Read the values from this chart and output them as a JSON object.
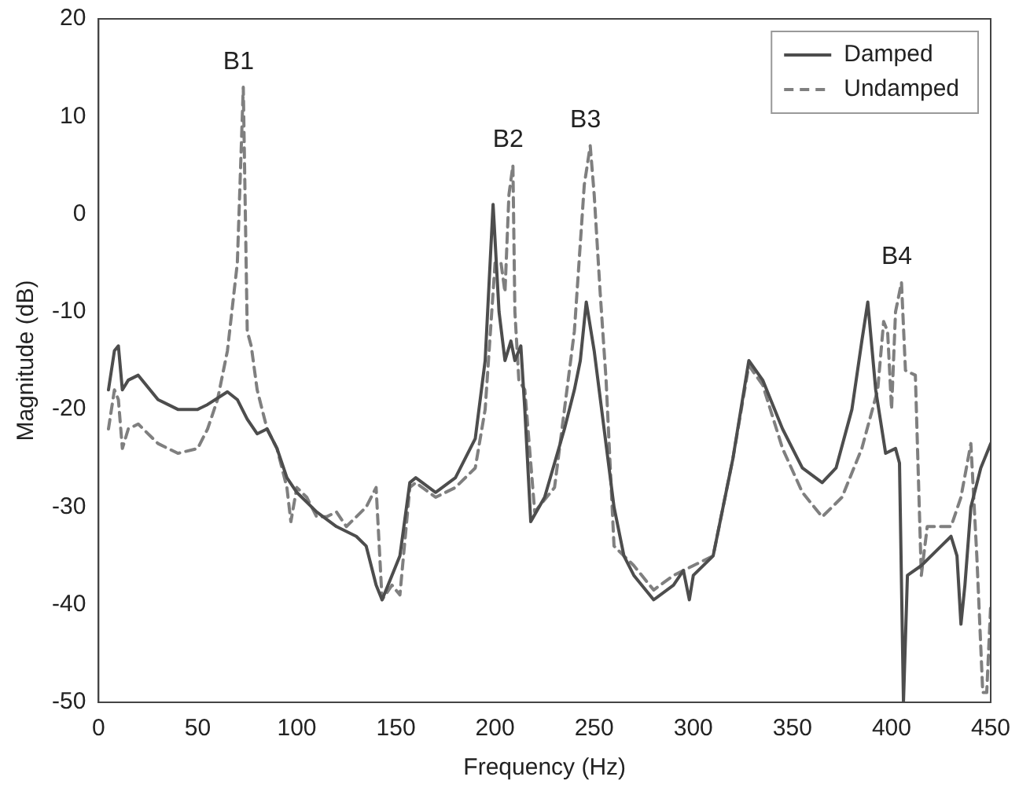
{
  "chart_data": {
    "type": "line",
    "xlabel": "Frequency (Hz)",
    "ylabel": "Magnitude (dB)",
    "xlim": [
      0,
      450
    ],
    "xticks": [
      0,
      50,
      100,
      150,
      200,
      250,
      300,
      350,
      400,
      450
    ],
    "ylim": [
      -50,
      20
    ],
    "yticks": [
      -50,
      -40,
      -30,
      -20,
      -10,
      0,
      10,
      20
    ],
    "grid": false,
    "legend": "top right",
    "marker": "none",
    "annotations": [
      {
        "text": "B1",
        "x": 73,
        "y": 13
      },
      {
        "text": "B2",
        "x": 209,
        "y": 5
      },
      {
        "text": "B3",
        "x": 248,
        "y": 7
      },
      {
        "text": "B4",
        "x": 405,
        "y": -7
      }
    ],
    "series": [
      {
        "name": "Damped",
        "color": "#4d4d4d",
        "line_style": "solid",
        "x": [
          5,
          8,
          10,
          12,
          15,
          20,
          30,
          40,
          50,
          55,
          65,
          70,
          75,
          80,
          85,
          90,
          95,
          100,
          110,
          120,
          130,
          135,
          140,
          143,
          148,
          152,
          157,
          160,
          170,
          180,
          190,
          195,
          199,
          202,
          205,
          208,
          210,
          213,
          215,
          218,
          225,
          235,
          240,
          243,
          246,
          250,
          255,
          260,
          265,
          270,
          280,
          290,
          295,
          298,
          300,
          310,
          320,
          328,
          335,
          345,
          355,
          365,
          372,
          380,
          385,
          388,
          392,
          397,
          402,
          404,
          406,
          408,
          415,
          425,
          430,
          433,
          435,
          437,
          440,
          445,
          450
        ],
        "values": [
          -18,
          -14,
          -13.5,
          -18,
          -17,
          -16.5,
          -19,
          -20,
          -20,
          -19.5,
          -18.2,
          -19,
          -21,
          -22.5,
          -22,
          -24,
          -27,
          -28.5,
          -30.5,
          -32,
          -33,
          -34,
          -38,
          -39.5,
          -37,
          -35,
          -27.5,
          -27,
          -28.5,
          -27,
          -23,
          -15,
          1,
          -10,
          -15,
          -13,
          -15,
          -13.5,
          -20,
          -31.5,
          -29,
          -22,
          -18,
          -15,
          -9,
          -14,
          -22,
          -30,
          -35,
          -37,
          -39.5,
          -38,
          -36.5,
          -39.5,
          -37,
          -35,
          -25,
          -15,
          -17,
          -22,
          -26,
          -27.5,
          -26,
          -20,
          -13,
          -9,
          -18,
          -24.5,
          -24,
          -25.5,
          -50,
          -37,
          -36,
          -34,
          -33,
          -35,
          -42,
          -38,
          -30,
          -26,
          -23.5
        ]
      },
      {
        "name": "Undamped",
        "color": "#7f7f7f",
        "line_style": "dashed",
        "x": [
          5,
          8,
          10,
          12,
          15,
          20,
          30,
          40,
          50,
          55,
          60,
          65,
          70,
          73,
          75,
          77,
          80,
          85,
          90,
          95,
          97,
          100,
          105,
          110,
          115,
          120,
          125,
          130,
          135,
          140,
          143,
          148,
          152,
          157,
          160,
          170,
          180,
          190,
          195,
          200,
          203,
          205,
          207,
          209,
          210,
          212,
          215,
          220,
          230,
          240,
          245,
          248,
          250,
          253,
          256,
          260,
          265,
          270,
          280,
          290,
          300,
          310,
          320,
          328,
          335,
          345,
          355,
          365,
          375,
          385,
          393,
          396,
          398,
          400,
          402,
          405,
          407,
          412,
          415,
          418,
          425,
          430,
          435,
          440,
          443,
          446,
          448,
          450
        ],
        "values": [
          -22,
          -18,
          -19,
          -24,
          -22,
          -21.5,
          -23.5,
          -24.5,
          -24,
          -22,
          -19,
          -14,
          -5,
          13,
          -12,
          -13.5,
          -18,
          -22,
          -24,
          -28,
          -31.5,
          -28,
          -29,
          -31,
          -31,
          -30.5,
          -32,
          -31,
          -30,
          -28,
          -39.5,
          -38,
          -39,
          -28,
          -27.5,
          -29,
          -28,
          -26,
          -20,
          -5,
          -5,
          -8,
          2,
          5,
          -10,
          -17,
          -18,
          -30.5,
          -28,
          -12,
          3,
          7,
          2,
          -8,
          -17,
          -34,
          -35,
          -36,
          -38.5,
          -37,
          -36,
          -35,
          -25,
          -15.5,
          -17.5,
          -24,
          -28.5,
          -31,
          -29,
          -24,
          -18,
          -11,
          -12,
          -20,
          -10,
          -7,
          -16,
          -16.5,
          -37,
          -32,
          -32,
          -32,
          -29,
          -23.5,
          -35,
          -49,
          -49,
          -40
        ]
      }
    ]
  }
}
